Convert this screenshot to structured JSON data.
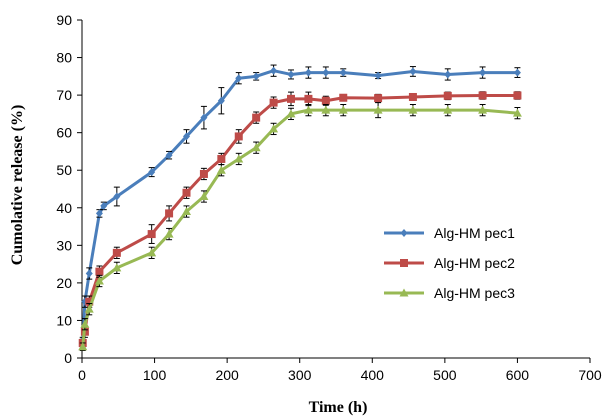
{
  "chart_data": {
    "type": "line",
    "xlabel": "Time (h)",
    "ylabel": "Cumolative release (%)",
    "xlim": [
      0,
      700
    ],
    "ylim": [
      0,
      90
    ],
    "xticks": [
      0,
      100,
      200,
      300,
      400,
      500,
      600,
      700
    ],
    "yticks": [
      0,
      10,
      20,
      30,
      40,
      50,
      60,
      70,
      80,
      90
    ],
    "grid": false,
    "legend_position": "right",
    "error_bars": true,
    "series": [
      {
        "name": "Alg-HM pec1",
        "color": "#4A7EBB",
        "marker": "diamond",
        "points": [
          {
            "x": 1,
            "y": 4,
            "err": 1
          },
          {
            "x": 4,
            "y": 15,
            "err": 1.5
          },
          {
            "x": 10,
            "y": 22.5,
            "err": 1.5
          },
          {
            "x": 24,
            "y": 38.5,
            "err": 1
          },
          {
            "x": 30,
            "y": 40.5,
            "err": 1
          },
          {
            "x": 48,
            "y": 43,
            "err": 2.5
          },
          {
            "x": 96,
            "y": 49.5,
            "err": 1.2
          },
          {
            "x": 120,
            "y": 54,
            "err": 1
          },
          {
            "x": 144,
            "y": 59,
            "err": 1.8
          },
          {
            "x": 168,
            "y": 64,
            "err": 3
          },
          {
            "x": 192,
            "y": 68.5,
            "err": 3.5
          },
          {
            "x": 216,
            "y": 74.5,
            "err": 1.5
          },
          {
            "x": 240,
            "y": 75,
            "err": 1
          },
          {
            "x": 264,
            "y": 76.5,
            "err": 1.5
          },
          {
            "x": 288,
            "y": 75.5,
            "err": 1.2
          },
          {
            "x": 312,
            "y": 76,
            "err": 1.5
          },
          {
            "x": 336,
            "y": 76,
            "err": 1.5
          },
          {
            "x": 360,
            "y": 76,
            "err": 1
          },
          {
            "x": 408,
            "y": 75.2,
            "err": 0.8
          },
          {
            "x": 456,
            "y": 76.3,
            "err": 1.3
          },
          {
            "x": 504,
            "y": 75.5,
            "err": 1.5
          },
          {
            "x": 552,
            "y": 76,
            "err": 1.5
          },
          {
            "x": 600,
            "y": 76,
            "err": 1.3
          }
        ]
      },
      {
        "name": "Alg-HM pec2",
        "color": "#BE4B48",
        "marker": "square",
        "points": [
          {
            "x": 1,
            "y": 4,
            "err": 1.5
          },
          {
            "x": 4,
            "y": 7,
            "err": 1.5
          },
          {
            "x": 10,
            "y": 15,
            "err": 1.5
          },
          {
            "x": 24,
            "y": 23,
            "err": 1.5
          },
          {
            "x": 48,
            "y": 28,
            "err": 1.5
          },
          {
            "x": 96,
            "y": 33,
            "err": 2.5
          },
          {
            "x": 120,
            "y": 38.5,
            "err": 2
          },
          {
            "x": 144,
            "y": 44,
            "err": 1.5
          },
          {
            "x": 168,
            "y": 49,
            "err": 1.5
          },
          {
            "x": 192,
            "y": 53,
            "err": 1.5
          },
          {
            "x": 216,
            "y": 59,
            "err": 1.8
          },
          {
            "x": 240,
            "y": 64,
            "err": 1.5
          },
          {
            "x": 264,
            "y": 68,
            "err": 1.5
          },
          {
            "x": 288,
            "y": 69,
            "err": 1.8
          },
          {
            "x": 312,
            "y": 69,
            "err": 1.8
          },
          {
            "x": 336,
            "y": 68.5,
            "err": 1.2
          },
          {
            "x": 360,
            "y": 69.3,
            "err": 0.8
          },
          {
            "x": 408,
            "y": 69.2,
            "err": 1
          },
          {
            "x": 456,
            "y": 69.5,
            "err": 0.8
          },
          {
            "x": 504,
            "y": 69.8,
            "err": 1
          },
          {
            "x": 552,
            "y": 69.9,
            "err": 1
          },
          {
            "x": 600,
            "y": 69.9,
            "err": 1
          }
        ]
      },
      {
        "name": "Alg-HM pec3",
        "color": "#98B954",
        "marker": "triangle",
        "points": [
          {
            "x": 1,
            "y": 3,
            "err": 1
          },
          {
            "x": 4,
            "y": 9,
            "err": 1.5
          },
          {
            "x": 10,
            "y": 13,
            "err": 1.5
          },
          {
            "x": 24,
            "y": 20.5,
            "err": 1.5
          },
          {
            "x": 48,
            "y": 24,
            "err": 1.5
          },
          {
            "x": 96,
            "y": 28,
            "err": 1.5
          },
          {
            "x": 120,
            "y": 33,
            "err": 1.5
          },
          {
            "x": 144,
            "y": 39,
            "err": 1.5
          },
          {
            "x": 168,
            "y": 43,
            "err": 1.5
          },
          {
            "x": 192,
            "y": 50,
            "err": 1.5
          },
          {
            "x": 216,
            "y": 53,
            "err": 1.5
          },
          {
            "x": 240,
            "y": 56,
            "err": 1.5
          },
          {
            "x": 264,
            "y": 61,
            "err": 1.5
          },
          {
            "x": 288,
            "y": 65,
            "err": 1.5
          },
          {
            "x": 312,
            "y": 66,
            "err": 1.5
          },
          {
            "x": 336,
            "y": 66,
            "err": 1.5
          },
          {
            "x": 360,
            "y": 66,
            "err": 1.5
          },
          {
            "x": 408,
            "y": 66,
            "err": 2
          },
          {
            "x": 456,
            "y": 66,
            "err": 1.5
          },
          {
            "x": 504,
            "y": 66,
            "err": 1.5
          },
          {
            "x": 552,
            "y": 66,
            "err": 1.5
          },
          {
            "x": 600,
            "y": 65.2,
            "err": 1.5
          }
        ]
      }
    ]
  }
}
